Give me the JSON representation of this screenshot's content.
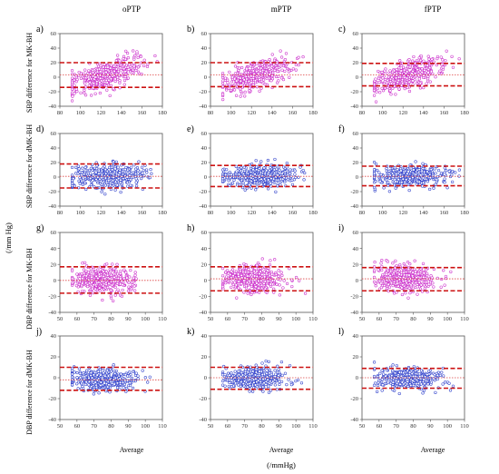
{
  "column_titles": [
    "oPTP",
    "mPTP",
    "fPTP"
  ],
  "row_labels": [
    "SBP difference for MK-BH",
    "SBP difference for dMK-BH",
    "DBP difference for MK-BH",
    "DBP difference for dMK-BH"
  ],
  "shared_ylabel": "(/mm Hg)",
  "shared_xlabel": "(/mmHg)",
  "xlabel": "Average",
  "colors": {
    "magenta": "#cc33cc",
    "blue": "#3344cc",
    "limit_line": "#cc1111",
    "mean_line": "#dd4444"
  },
  "chart_data": [
    {
      "type": "scatter",
      "panel": "a)",
      "row": 0,
      "col": 0,
      "color": "magenta",
      "xlim": [
        80,
        180
      ],
      "xticks": [
        80,
        100,
        120,
        140,
        160,
        180
      ],
      "ylim": [
        -40,
        60
      ],
      "yticks": [
        -40,
        -20,
        0,
        20,
        40,
        60
      ],
      "x_center": [
        125,
        18
      ],
      "y_trend": [
        0.45,
        125
      ],
      "y_spread": 9,
      "mean": 3,
      "limits": [
        -14,
        20
      ],
      "n": 420
    },
    {
      "type": "scatter",
      "panel": "b)",
      "row": 0,
      "col": 1,
      "color": "magenta",
      "xlim": [
        80,
        180
      ],
      "xticks": [
        80,
        100,
        120,
        140,
        160,
        180
      ],
      "ylim": [
        -40,
        60
      ],
      "yticks": [
        -40,
        -20,
        0,
        20,
        40,
        60
      ],
      "x_center": [
        125,
        17
      ],
      "y_trend": [
        0.45,
        125
      ],
      "y_spread": 9,
      "mean": 3,
      "limits": [
        -13,
        20
      ],
      "n": 420
    },
    {
      "type": "scatter",
      "panel": "c)",
      "row": 0,
      "col": 2,
      "color": "magenta",
      "xlim": [
        80,
        180
      ],
      "xticks": [
        80,
        100,
        120,
        140,
        160,
        180
      ],
      "ylim": [
        -40,
        60
      ],
      "yticks": [
        -40,
        -20,
        0,
        20,
        40,
        60
      ],
      "x_center": [
        125,
        17
      ],
      "y_trend": [
        0.45,
        125
      ],
      "y_spread": 9,
      "mean": 3,
      "limits": [
        -12,
        19
      ],
      "n": 420
    },
    {
      "type": "scatter",
      "panel": "d)",
      "row": 1,
      "col": 0,
      "color": "blue",
      "xlim": [
        80,
        180
      ],
      "xticks": [
        80,
        100,
        120,
        140,
        160,
        180
      ],
      "ylim": [
        -40,
        60
      ],
      "yticks": [
        -40,
        -20,
        0,
        20,
        40,
        60
      ],
      "x_center": [
        128,
        18
      ],
      "y_trend": [
        0.05,
        125
      ],
      "y_spread": 8.5,
      "mean": 1,
      "limits": [
        -15,
        18
      ],
      "n": 420
    },
    {
      "type": "scatter",
      "panel": "e)",
      "row": 1,
      "col": 1,
      "color": "blue",
      "xlim": [
        80,
        180
      ],
      "xticks": [
        80,
        100,
        120,
        140,
        160,
        180
      ],
      "ylim": [
        -40,
        60
      ],
      "yticks": [
        -40,
        -20,
        0,
        20,
        40,
        60
      ],
      "x_center": [
        128,
        18
      ],
      "y_trend": [
        0.05,
        125
      ],
      "y_spread": 7.5,
      "mean": 1,
      "limits": [
        -13,
        16
      ],
      "n": 420
    },
    {
      "type": "scatter",
      "panel": "f)",
      "row": 1,
      "col": 2,
      "color": "blue",
      "xlim": [
        80,
        180
      ],
      "xticks": [
        80,
        100,
        120,
        140,
        160,
        180
      ],
      "ylim": [
        -40,
        60
      ],
      "yticks": [
        -40,
        -20,
        0,
        20,
        40,
        60
      ],
      "x_center": [
        128,
        18
      ],
      "y_trend": [
        0.05,
        125
      ],
      "y_spread": 7,
      "mean": 1,
      "limits": [
        -12,
        15
      ],
      "n": 420
    },
    {
      "type": "scatter",
      "panel": "g)",
      "row": 2,
      "col": 0,
      "color": "magenta",
      "xlim": [
        50,
        110
      ],
      "xticks": [
        50,
        60,
        70,
        80,
        90,
        100,
        110
      ],
      "ylim": [
        -40,
        60
      ],
      "yticks": [
        -40,
        -20,
        0,
        20,
        40,
        60
      ],
      "x_center": [
        75,
        9
      ],
      "y_trend": [
        0.0,
        75
      ],
      "y_spread": 8,
      "mean": 0,
      "limits": [
        -16,
        17
      ],
      "n": 420
    },
    {
      "type": "scatter",
      "panel": "h)",
      "row": 2,
      "col": 1,
      "color": "magenta",
      "xlim": [
        50,
        110
      ],
      "xticks": [
        50,
        60,
        70,
        80,
        90,
        100,
        110
      ],
      "ylim": [
        -40,
        60
      ],
      "yticks": [
        -40,
        -20,
        0,
        20,
        40,
        60
      ],
      "x_center": [
        75,
        9
      ],
      "y_trend": [
        0.0,
        75
      ],
      "y_spread": 8,
      "mean": 2,
      "limits": [
        -13,
        17
      ],
      "n": 420
    },
    {
      "type": "scatter",
      "panel": "i)",
      "row": 2,
      "col": 2,
      "color": "magenta",
      "xlim": [
        50,
        110
      ],
      "xticks": [
        50,
        60,
        70,
        80,
        90,
        100,
        110
      ],
      "ylim": [
        -40,
        60
      ],
      "yticks": [
        -40,
        -20,
        0,
        20,
        40,
        60
      ],
      "x_center": [
        75,
        9
      ],
      "y_trend": [
        0.0,
        75
      ],
      "y_spread": 8,
      "mean": 2,
      "limits": [
        -13,
        16
      ],
      "n": 420
    },
    {
      "type": "scatter",
      "panel": "j)",
      "row": 3,
      "col": 0,
      "color": "blue",
      "xlim": [
        50,
        110
      ],
      "xticks": [
        50,
        60,
        70,
        80,
        90,
        100,
        110
      ],
      "ylim": [
        -40,
        40
      ],
      "yticks": [
        -40,
        -20,
        0,
        20,
        40
      ],
      "x_center": [
        76,
        9
      ],
      "y_trend": [
        0.0,
        76
      ],
      "y_spread": 5,
      "mean": -2,
      "limits": [
        -12,
        10
      ],
      "n": 420
    },
    {
      "type": "scatter",
      "panel": "k)",
      "row": 3,
      "col": 1,
      "color": "blue",
      "xlim": [
        50,
        110
      ],
      "xticks": [
        50,
        60,
        70,
        80,
        90,
        100,
        110
      ],
      "ylim": [
        -40,
        40
      ],
      "yticks": [
        -40,
        -20,
        0,
        20,
        40
      ],
      "x_center": [
        76,
        9
      ],
      "y_trend": [
        0.0,
        76
      ],
      "y_spread": 5,
      "mean": 0,
      "limits": [
        -11,
        10
      ],
      "n": 420
    },
    {
      "type": "scatter",
      "panel": "l)",
      "row": 3,
      "col": 2,
      "color": "blue",
      "xlim": [
        50,
        110
      ],
      "xticks": [
        50,
        60,
        70,
        80,
        90,
        100,
        110
      ],
      "ylim": [
        -40,
        40
      ],
      "yticks": [
        -40,
        -20,
        0,
        20,
        40
      ],
      "x_center": [
        76,
        9
      ],
      "y_trend": [
        0.0,
        76
      ],
      "y_spread": 5,
      "mean": 0,
      "limits": [
        -10,
        9
      ],
      "n": 420
    }
  ]
}
